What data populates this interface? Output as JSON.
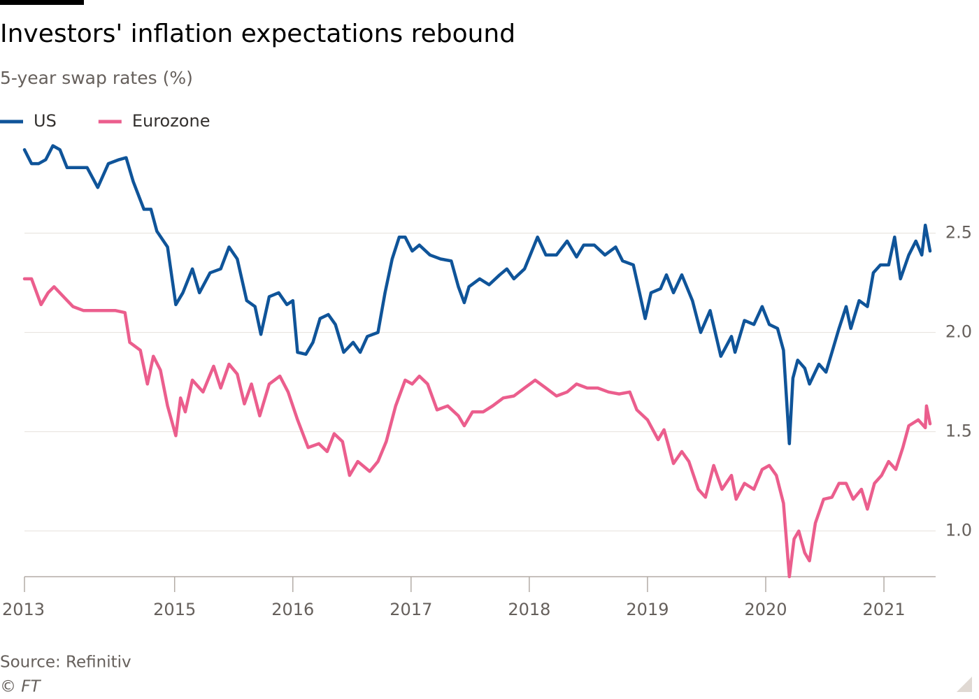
{
  "chart_data": {
    "type": "line",
    "title": "Investors' inflation expectations rebound",
    "subtitle": "5-year swap rates (%)",
    "source": "Source: Refinitiv",
    "credit": "© FT",
    "xlim": [
      2013.73,
      2021.39
    ],
    "xticks": [
      {
        "value": 2013.73,
        "label": "2013"
      },
      2015,
      2016,
      2017,
      2018,
      2019,
      2020,
      2021
    ],
    "ylim": [
      0.77,
      2.97
    ],
    "yticks": [
      {
        "value": 1,
        "label": "1.0"
      },
      1.5,
      {
        "value": 2,
        "label": "2.0"
      },
      2.5
    ],
    "grid": true,
    "legend": "top-left",
    "series": [
      {
        "name": "US",
        "color": "#0f5499",
        "x": [
          2013.73,
          2013.79,
          2013.85,
          2013.91,
          2013.97,
          2014.03,
          2014.09,
          2014.17,
          2014.26,
          2014.35,
          2014.44,
          2014.53,
          2014.59,
          2014.65,
          2014.74,
          2014.8,
          2014.85,
          2014.94,
          2015.01,
          2015.07,
          2015.15,
          2015.21,
          2015.3,
          2015.39,
          2015.46,
          2015.53,
          2015.61,
          2015.68,
          2015.73,
          2015.8,
          2015.88,
          2015.95,
          2016.0,
          2016.04,
          2016.11,
          2016.17,
          2016.23,
          2016.3,
          2016.36,
          2016.43,
          2016.51,
          2016.57,
          2016.63,
          2016.72,
          2016.78,
          2016.84,
          2016.9,
          2016.95,
          2017.01,
          2017.07,
          2017.16,
          2017.25,
          2017.34,
          2017.4,
          2017.45,
          2017.49,
          2017.58,
          2017.66,
          2017.75,
          2017.81,
          2017.87,
          2017.96,
          2018.07,
          2018.14,
          2018.23,
          2018.32,
          2018.4,
          2018.46,
          2018.55,
          2018.64,
          2018.73,
          2018.79,
          2018.88,
          2018.94,
          2018.98,
          2019.03,
          2019.11,
          2019.16,
          2019.22,
          2019.29,
          2019.38,
          2019.45,
          2019.53,
          2019.62,
          2019.71,
          2019.74,
          2019.82,
          2019.9,
          2019.97,
          2020.03,
          2020.1,
          2020.15,
          2020.2,
          2020.23,
          2020.27,
          2020.33,
          2020.37,
          2020.45,
          2020.51,
          2020.56,
          2020.62,
          2020.68,
          2020.72,
          2020.79,
          2020.86,
          2020.91,
          2020.97,
          2021.04,
          2021.09,
          2021.14,
          2021.21,
          2021.27,
          2021.32,
          2021.35,
          2021.39
        ],
        "values": [
          2.92,
          2.85,
          2.85,
          2.87,
          2.94,
          2.92,
          2.83,
          2.83,
          2.83,
          2.73,
          2.85,
          2.87,
          2.88,
          2.76,
          2.62,
          2.62,
          2.51,
          2.43,
          2.14,
          2.2,
          2.32,
          2.2,
          2.3,
          2.32,
          2.43,
          2.37,
          2.16,
          2.13,
          1.99,
          2.18,
          2.2,
          2.14,
          2.16,
          1.9,
          1.89,
          1.95,
          2.07,
          2.09,
          2.04,
          1.9,
          1.95,
          1.9,
          1.98,
          2.0,
          2.2,
          2.37,
          2.48,
          2.48,
          2.41,
          2.44,
          2.39,
          2.37,
          2.36,
          2.23,
          2.15,
          2.23,
          2.27,
          2.24,
          2.29,
          2.32,
          2.27,
          2.32,
          2.48,
          2.39,
          2.39,
          2.46,
          2.38,
          2.44,
          2.44,
          2.39,
          2.43,
          2.36,
          2.34,
          2.18,
          2.07,
          2.2,
          2.22,
          2.29,
          2.2,
          2.29,
          2.16,
          2.0,
          2.11,
          1.88,
          1.98,
          1.9,
          2.06,
          2.04,
          2.13,
          2.04,
          2.02,
          1.91,
          1.44,
          1.77,
          1.86,
          1.82,
          1.74,
          1.84,
          1.8,
          1.9,
          2.02,
          2.13,
          2.02,
          2.16,
          2.13,
          2.3,
          2.34,
          2.34,
          2.48,
          2.27,
          2.39,
          2.46,
          2.39,
          2.54,
          2.41
        ]
      },
      {
        "name": "Eurozone",
        "color": "#eb5e8d",
        "x": [
          2013.73,
          2013.79,
          2013.87,
          2013.93,
          2013.98,
          2014.06,
          2014.14,
          2014.23,
          2014.32,
          2014.41,
          2014.5,
          2014.58,
          2014.62,
          2014.71,
          2014.77,
          2014.82,
          2014.88,
          2014.94,
          2015.01,
          2015.05,
          2015.09,
          2015.15,
          2015.24,
          2015.33,
          2015.39,
          2015.46,
          2015.53,
          2015.59,
          2015.65,
          2015.72,
          2015.8,
          2015.89,
          2015.96,
          2016.04,
          2016.13,
          2016.22,
          2016.29,
          2016.35,
          2016.42,
          2016.48,
          2016.55,
          2016.65,
          2016.72,
          2016.79,
          2016.87,
          2016.95,
          2017.01,
          2017.07,
          2017.14,
          2017.22,
          2017.31,
          2017.4,
          2017.45,
          2017.52,
          2017.61,
          2017.69,
          2017.78,
          2017.87,
          2017.96,
          2018.05,
          2018.14,
          2018.23,
          2018.32,
          2018.4,
          2018.49,
          2018.58,
          2018.67,
          2018.76,
          2018.85,
          2018.91,
          2019.0,
          2019.09,
          2019.14,
          2019.22,
          2019.29,
          2019.35,
          2019.43,
          2019.49,
          2019.56,
          2019.63,
          2019.71,
          2019.75,
          2019.82,
          2019.9,
          2019.97,
          2020.03,
          2020.09,
          2020.15,
          2020.2,
          2020.24,
          2020.28,
          2020.33,
          2020.37,
          2020.42,
          2020.49,
          2020.56,
          2020.62,
          2020.68,
          2020.74,
          2020.81,
          2020.86,
          2020.92,
          2020.98,
          2021.04,
          2021.1,
          2021.16,
          2021.21,
          2021.29,
          2021.35,
          2021.36,
          2021.39
        ],
        "values": [
          2.27,
          2.27,
          2.14,
          2.2,
          2.23,
          2.18,
          2.13,
          2.11,
          2.11,
          2.11,
          2.11,
          2.1,
          1.95,
          1.91,
          1.74,
          1.88,
          1.81,
          1.63,
          1.48,
          1.67,
          1.6,
          1.76,
          1.7,
          1.83,
          1.72,
          1.84,
          1.79,
          1.64,
          1.74,
          1.58,
          1.74,
          1.78,
          1.7,
          1.56,
          1.42,
          1.44,
          1.4,
          1.49,
          1.45,
          1.28,
          1.35,
          1.3,
          1.35,
          1.45,
          1.63,
          1.76,
          1.74,
          1.78,
          1.74,
          1.61,
          1.63,
          1.58,
          1.53,
          1.6,
          1.6,
          1.63,
          1.67,
          1.68,
          1.72,
          1.76,
          1.72,
          1.68,
          1.7,
          1.74,
          1.72,
          1.72,
          1.7,
          1.69,
          1.7,
          1.61,
          1.56,
          1.46,
          1.51,
          1.34,
          1.4,
          1.35,
          1.21,
          1.17,
          1.33,
          1.21,
          1.28,
          1.16,
          1.24,
          1.21,
          1.31,
          1.33,
          1.28,
          1.14,
          0.77,
          0.96,
          1.0,
          0.89,
          0.85,
          1.04,
          1.16,
          1.17,
          1.24,
          1.24,
          1.16,
          1.21,
          1.11,
          1.24,
          1.28,
          1.35,
          1.31,
          1.42,
          1.53,
          1.56,
          1.52,
          1.63,
          1.54
        ]
      }
    ]
  }
}
